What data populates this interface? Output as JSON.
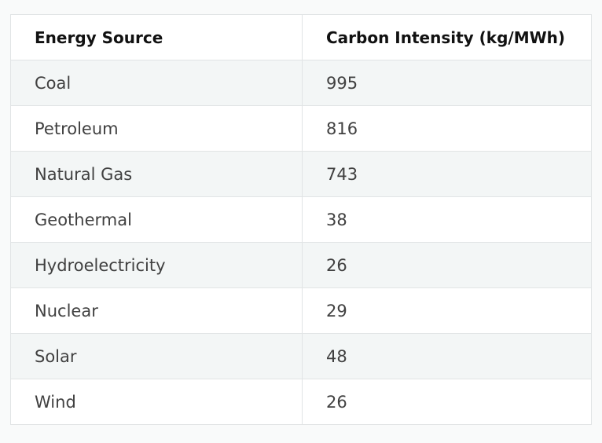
{
  "table": {
    "header": [
      "Energy Source",
      "Carbon Intensity (kg/MWh)"
    ],
    "rows": [
      [
        "Coal",
        995
      ],
      [
        "Petroleum",
        816
      ],
      [
        "Natural Gas",
        743
      ],
      [
        "Geothermal",
        38
      ],
      [
        "Hydroelectricity",
        26
      ],
      [
        "Nuclear",
        29
      ],
      [
        "Solar",
        48
      ],
      [
        "Wind",
        26
      ]
    ]
  }
}
